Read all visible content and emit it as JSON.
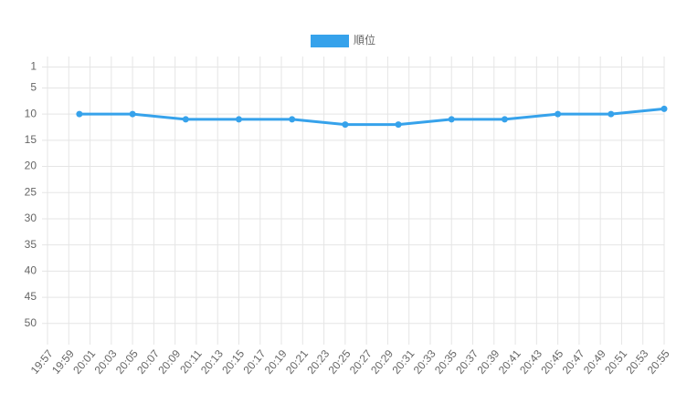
{
  "chart_data": {
    "type": "line",
    "x": [
      "20:00",
      "20:05",
      "20:10",
      "20:15",
      "20:20",
      "20:25",
      "20:30",
      "20:35",
      "20:40",
      "20:45",
      "20:50",
      "20:55"
    ],
    "series": [
      {
        "name": "順位",
        "color": "#36a2eb",
        "values": [
          10,
          10,
          11,
          11,
          11,
          12,
          12,
          11,
          11,
          10,
          10,
          9
        ]
      }
    ],
    "xlim": [
      "19:57",
      "20:55"
    ],
    "xticks": [
      "19:57",
      "19:59",
      "20:01",
      "20:03",
      "20:05",
      "20:07",
      "20:09",
      "20:11",
      "20:13",
      "20:15",
      "20:17",
      "20:19",
      "20:21",
      "20:23",
      "20:25",
      "20:27",
      "20:29",
      "20:31",
      "20:33",
      "20:35",
      "20:37",
      "20:39",
      "20:41",
      "20:43",
      "20:45",
      "20:47",
      "20:49",
      "20:51",
      "20:53",
      "20:55"
    ],
    "ylim": [
      -1,
      53
    ],
    "yticks": [
      1,
      5,
      10,
      15,
      20,
      25,
      30,
      35,
      40,
      45,
      50
    ],
    "y_reversed": true,
    "grid": true,
    "legend": "top"
  }
}
